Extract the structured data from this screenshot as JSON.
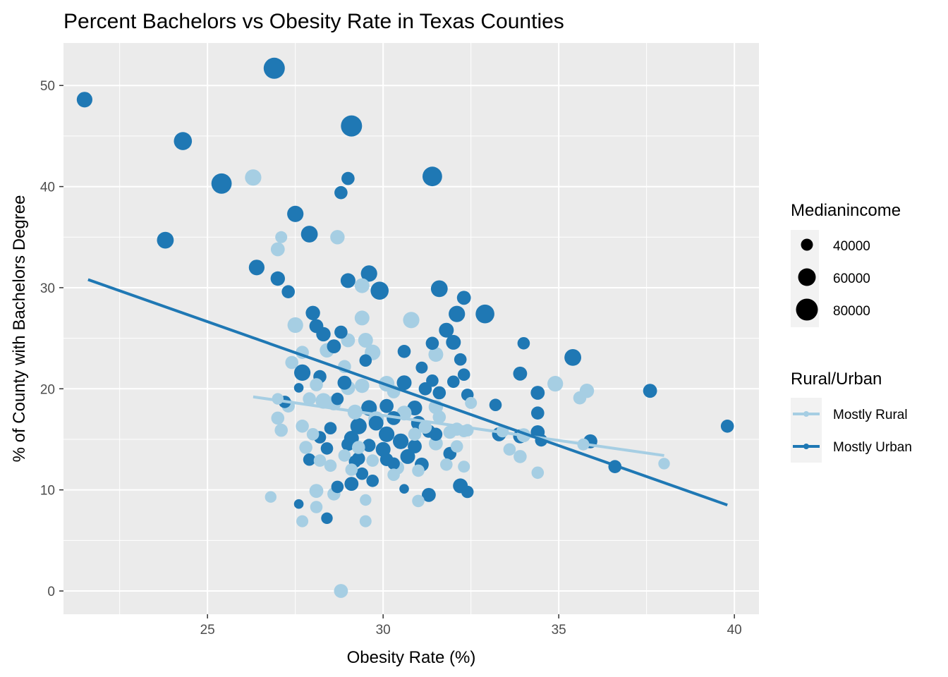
{
  "chart_data": {
    "type": "scatter",
    "title": "Percent Bachelors vs Obesity Rate in Texas Counties",
    "xlabel": "Obesity Rate (%)",
    "ylabel": "% of County with Bachelors Degree",
    "xlim": [
      20.9,
      40.7
    ],
    "ylim": [
      -2.3,
      54.2
    ],
    "x_ticks": [
      25,
      30,
      35,
      40
    ],
    "y_ticks": [
      0,
      10,
      20,
      30,
      40,
      50
    ],
    "grid": true,
    "legend_position": "right",
    "size_legend": {
      "title": "Medianincome",
      "entries": [
        {
          "label": "40000",
          "value": 40000
        },
        {
          "label": "60000",
          "value": 60000
        },
        {
          "label": "80000",
          "value": 80000
        }
      ]
    },
    "color_legend": {
      "title": "Rural/Urban",
      "entries": [
        {
          "label": "Mostly Rural",
          "color": "#a6cee3"
        },
        {
          "label": "Mostly Urban",
          "color": "#1f78b4"
        }
      ]
    },
    "trend_lines": [
      {
        "name": "Mostly Rural",
        "color": "#a6cee3",
        "x": [
          26.3,
          38.0
        ],
        "y": [
          19.2,
          13.4
        ]
      },
      {
        "name": "Mostly Urban",
        "color": "#1f78b4",
        "x": [
          21.6,
          39.8
        ],
        "y": [
          30.8,
          8.5
        ]
      }
    ],
    "series": [
      {
        "name": "Mostly Urban",
        "color": "#1f78b4",
        "points": [
          [
            21.5,
            48.6,
            55000
          ],
          [
            26.9,
            51.7,
            78000
          ],
          [
            24.3,
            44.5,
            65000
          ],
          [
            29.1,
            46.0,
            78000
          ],
          [
            25.4,
            40.3,
            75000
          ],
          [
            31.4,
            41.0,
            72000
          ],
          [
            29.0,
            40.8,
            45000
          ],
          [
            28.8,
            39.4,
            45000
          ],
          [
            23.8,
            34.7,
            60000
          ],
          [
            27.5,
            37.3,
            58000
          ],
          [
            27.9,
            35.3,
            60000
          ],
          [
            26.4,
            32.0,
            55000
          ],
          [
            27.0,
            30.9,
            50000
          ],
          [
            27.3,
            29.6,
            45000
          ],
          [
            29.0,
            30.7,
            52000
          ],
          [
            29.6,
            31.4,
            58000
          ],
          [
            29.9,
            29.7,
            65000
          ],
          [
            31.6,
            29.9,
            60000
          ],
          [
            32.3,
            29.0,
            48000
          ],
          [
            32.1,
            27.4,
            58000
          ],
          [
            32.9,
            27.4,
            68000
          ],
          [
            28.0,
            27.5,
            50000
          ],
          [
            28.1,
            26.2,
            48000
          ],
          [
            28.3,
            25.4,
            50000
          ],
          [
            28.8,
            25.6,
            45000
          ],
          [
            28.6,
            24.2,
            48000
          ],
          [
            31.8,
            25.8,
            52000
          ],
          [
            32.0,
            24.6,
            52000
          ],
          [
            34.0,
            24.5,
            42000
          ],
          [
            31.4,
            24.5,
            45000
          ],
          [
            30.6,
            23.7,
            45000
          ],
          [
            32.2,
            22.9,
            42000
          ],
          [
            35.4,
            23.1,
            60000
          ],
          [
            29.5,
            22.8,
            42000
          ],
          [
            31.1,
            22.1,
            40000
          ],
          [
            33.9,
            21.5,
            48000
          ],
          [
            27.7,
            21.6,
            58000
          ],
          [
            28.2,
            21.2,
            45000
          ],
          [
            28.9,
            20.6,
            48000
          ],
          [
            30.6,
            20.6,
            52000
          ],
          [
            31.2,
            20.0,
            45000
          ],
          [
            31.4,
            20.8,
            42000
          ],
          [
            32.0,
            20.7,
            42000
          ],
          [
            32.3,
            21.4,
            42000
          ],
          [
            37.6,
            19.8,
            48000
          ],
          [
            34.4,
            19.6,
            48000
          ],
          [
            31.6,
            19.6,
            45000
          ],
          [
            32.4,
            19.4,
            42000
          ],
          [
            27.2,
            18.7,
            42000
          ],
          [
            28.7,
            19.0,
            42000
          ],
          [
            29.6,
            18.1,
            55000
          ],
          [
            30.1,
            18.3,
            48000
          ],
          [
            30.9,
            18.1,
            52000
          ],
          [
            33.2,
            18.4,
            42000
          ],
          [
            34.4,
            17.6,
            45000
          ],
          [
            29.3,
            16.3,
            58000
          ],
          [
            29.8,
            16.6,
            52000
          ],
          [
            30.3,
            17.1,
            48000
          ],
          [
            31.0,
            16.6,
            50000
          ],
          [
            28.5,
            16.1,
            42000
          ],
          [
            29.1,
            15.1,
            52000
          ],
          [
            30.1,
            15.5,
            55000
          ],
          [
            30.5,
            14.8,
            55000
          ],
          [
            30.9,
            14.3,
            48000
          ],
          [
            31.3,
            15.8,
            45000
          ],
          [
            31.5,
            15.5,
            45000
          ],
          [
            28.2,
            15.2,
            42000
          ],
          [
            28.4,
            14.1,
            42000
          ],
          [
            29.0,
            14.5,
            45000
          ],
          [
            29.6,
            14.4,
            45000
          ],
          [
            30.0,
            14.0,
            52000
          ],
          [
            30.7,
            13.3,
            52000
          ],
          [
            31.1,
            12.5,
            48000
          ],
          [
            29.3,
            13.1,
            45000
          ],
          [
            29.2,
            12.8,
            42000
          ],
          [
            29.4,
            11.6,
            42000
          ],
          [
            29.7,
            10.9,
            42000
          ],
          [
            30.1,
            13.0,
            45000
          ],
          [
            30.3,
            12.6,
            42000
          ],
          [
            27.9,
            13.0,
            42000
          ],
          [
            31.9,
            13.6,
            45000
          ],
          [
            32.2,
            10.4,
            52000
          ],
          [
            32.4,
            9.8,
            42000
          ],
          [
            31.3,
            9.5,
            48000
          ],
          [
            28.7,
            10.3,
            42000
          ],
          [
            29.1,
            10.6,
            48000
          ],
          [
            33.3,
            15.5,
            48000
          ],
          [
            33.9,
            15.3,
            48000
          ],
          [
            34.4,
            15.7,
            48000
          ],
          [
            34.5,
            14.9,
            42000
          ],
          [
            35.9,
            14.8,
            48000
          ],
          [
            36.6,
            12.3,
            45000
          ],
          [
            39.8,
            16.3,
            45000
          ],
          [
            27.6,
            8.6,
            30000
          ],
          [
            27.6,
            20.1,
            30000
          ],
          [
            28.4,
            7.2,
            38000
          ],
          [
            30.6,
            10.1,
            30000
          ]
        ]
      },
      {
        "name": "Mostly Rural",
        "color": "#a6cee3",
        "points": [
          [
            26.3,
            40.9,
            58000
          ],
          [
            27.1,
            35.0,
            40000
          ],
          [
            27.0,
            33.8,
            48000
          ],
          [
            28.7,
            35.0,
            50000
          ],
          [
            29.4,
            30.2,
            52000
          ],
          [
            27.5,
            26.3,
            55000
          ],
          [
            29.4,
            27.0,
            52000
          ],
          [
            30.8,
            26.8,
            58000
          ],
          [
            29.0,
            24.8,
            48000
          ],
          [
            29.5,
            24.8,
            52000
          ],
          [
            29.7,
            23.6,
            55000
          ],
          [
            27.7,
            23.6,
            45000
          ],
          [
            28.4,
            23.8,
            50000
          ],
          [
            28.9,
            22.2,
            45000
          ],
          [
            27.4,
            22.6,
            45000
          ],
          [
            31.5,
            23.4,
            52000
          ],
          [
            30.1,
            20.5,
            55000
          ],
          [
            29.4,
            20.3,
            50000
          ],
          [
            29.0,
            20.1,
            50000
          ],
          [
            28.1,
            20.4,
            45000
          ],
          [
            28.3,
            18.8,
            55000
          ],
          [
            28.6,
            18.6,
            52000
          ],
          [
            27.9,
            19.0,
            45000
          ],
          [
            27.3,
            18.3,
            45000
          ],
          [
            27.0,
            17.1,
            45000
          ],
          [
            29.2,
            17.7,
            52000
          ],
          [
            30.3,
            19.7,
            45000
          ],
          [
            31.5,
            18.2,
            50000
          ],
          [
            32.5,
            18.6,
            40000
          ],
          [
            34.9,
            20.5,
            55000
          ],
          [
            35.8,
            19.8,
            50000
          ],
          [
            35.6,
            19.1,
            45000
          ],
          [
            30.6,
            17.6,
            52000
          ],
          [
            31.2,
            16.2,
            45000
          ],
          [
            31.6,
            17.2,
            45000
          ],
          [
            32.1,
            16.0,
            45000
          ],
          [
            32.4,
            15.9,
            42000
          ],
          [
            27.1,
            15.9,
            45000
          ],
          [
            27.7,
            16.3,
            45000
          ],
          [
            28.0,
            15.5,
            42000
          ],
          [
            29.8,
            17.0,
            55000
          ],
          [
            30.9,
            15.5,
            45000
          ],
          [
            31.5,
            14.6,
            48000
          ],
          [
            31.9,
            15.7,
            45000
          ],
          [
            32.1,
            14.3,
            42000
          ],
          [
            33.4,
            15.8,
            42000
          ],
          [
            33.6,
            14.0,
            42000
          ],
          [
            33.9,
            13.3,
            45000
          ],
          [
            34.0,
            15.4,
            48000
          ],
          [
            35.7,
            14.5,
            40000
          ],
          [
            27.8,
            14.2,
            45000
          ],
          [
            28.2,
            12.9,
            42000
          ],
          [
            28.9,
            13.4,
            42000
          ],
          [
            29.3,
            14.2,
            45000
          ],
          [
            29.7,
            12.9,
            42000
          ],
          [
            30.4,
            12.2,
            48000
          ],
          [
            31.8,
            12.5,
            42000
          ],
          [
            32.3,
            12.3,
            40000
          ],
          [
            32.3,
            15.8,
            40000
          ],
          [
            28.5,
            12.4,
            42000
          ],
          [
            29.1,
            12.0,
            42000
          ],
          [
            30.3,
            11.5,
            42000
          ],
          [
            31.0,
            11.9,
            42000
          ],
          [
            28.1,
            9.9,
            48000
          ],
          [
            28.6,
            9.6,
            45000
          ],
          [
            31.0,
            8.9,
            42000
          ],
          [
            28.1,
            8.3,
            42000
          ],
          [
            29.5,
            9.0,
            38000
          ],
          [
            26.8,
            9.3,
            38000
          ],
          [
            27.7,
            6.9,
            40000
          ],
          [
            29.5,
            6.9,
            40000
          ],
          [
            28.8,
            0.0,
            48000
          ],
          [
            34.4,
            11.7,
            42000
          ],
          [
            38.0,
            12.6,
            38000
          ],
          [
            27.0,
            19.0,
            38000
          ]
        ]
      }
    ]
  }
}
